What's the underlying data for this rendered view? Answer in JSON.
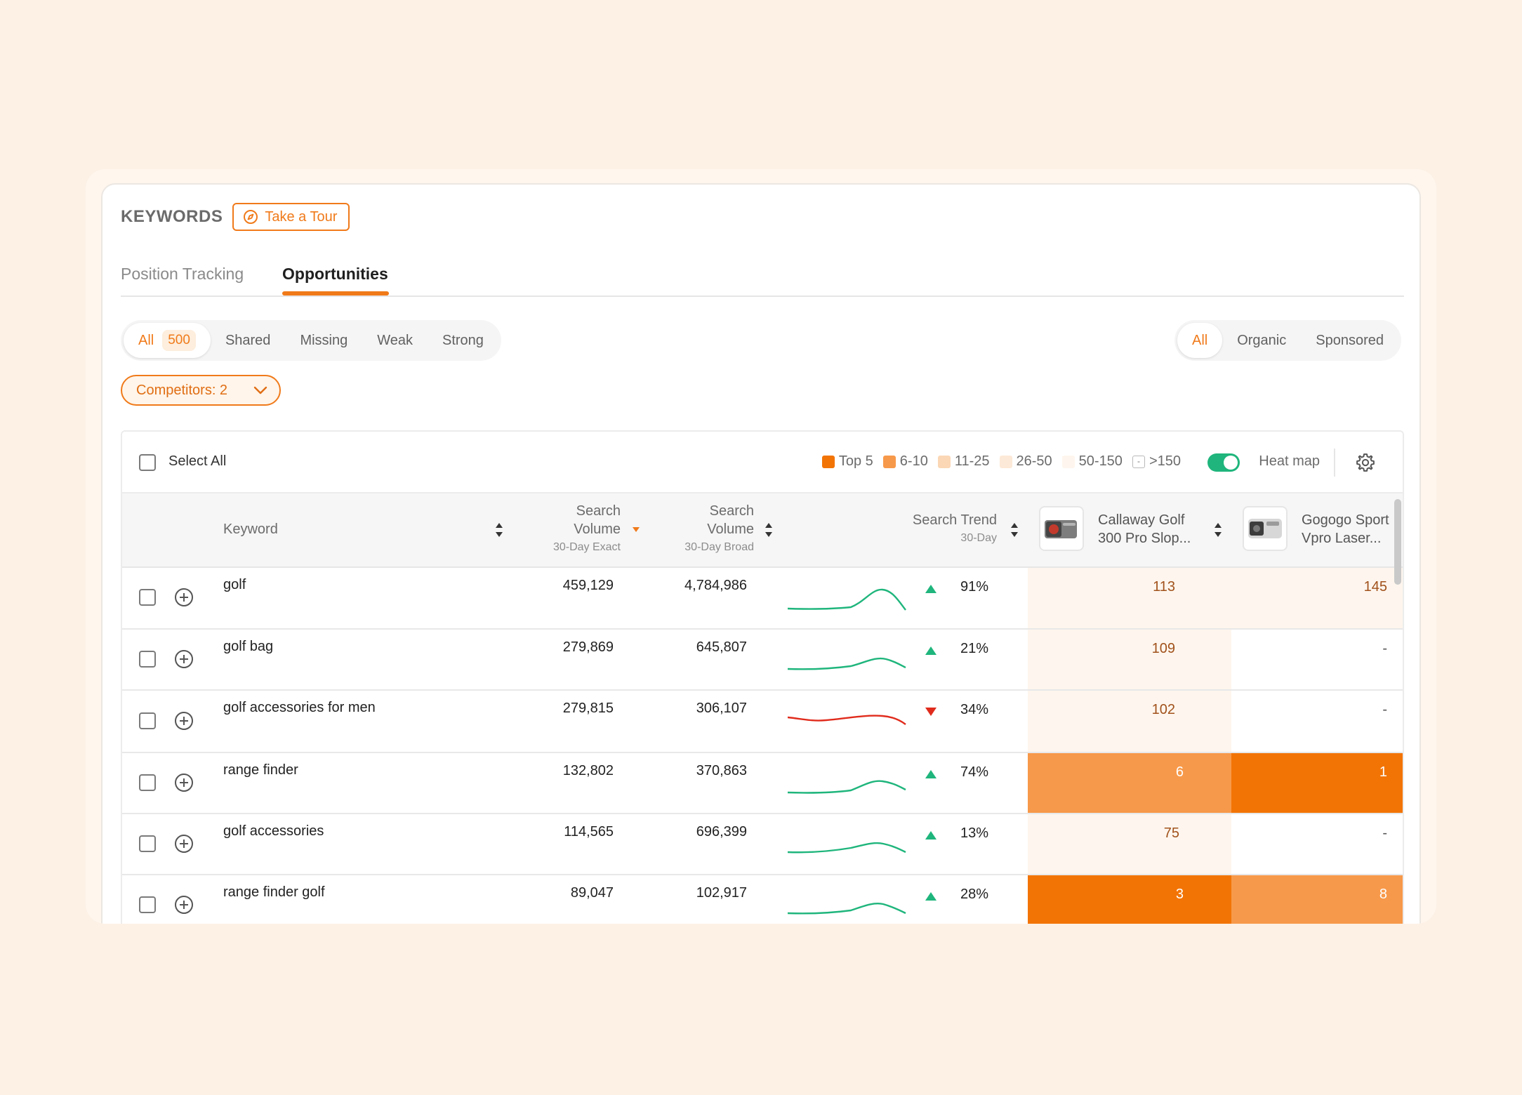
{
  "header": {
    "title": "KEYWORDS",
    "tour_label": "Take a Tour"
  },
  "tabs": [
    {
      "label": "Position Tracking"
    },
    {
      "label": "Opportunities"
    }
  ],
  "filters": {
    "all_label": "All",
    "all_count": "500",
    "items": [
      "Shared",
      "Missing",
      "Weak",
      "Strong"
    ]
  },
  "type_filter": {
    "items": [
      "All",
      "Organic",
      "Sponsored"
    ]
  },
  "competitors_label": "Competitors: 2",
  "toolbar": {
    "select_all": "Select All",
    "legend": [
      {
        "label": "Top 5",
        "color": "#f27405"
      },
      {
        "label": "6-10",
        "color": "#f7994a"
      },
      {
        "label": "11-25",
        "color": "#fbd7b5"
      },
      {
        "label": "26-50",
        "color": "#fde9d7"
      },
      {
        "label": "50-150",
        "color": "#fef6ee"
      },
      {
        "label": ">150",
        "color": "#ffffff",
        "mark": "-"
      }
    ],
    "heatmap_label": "Heat map"
  },
  "columns": {
    "keyword": "Keyword",
    "sv_exact": {
      "line1": "Search",
      "line2": "Volume",
      "sub": "30-Day Exact"
    },
    "sv_broad": {
      "line1": "Search",
      "line2": "Volume",
      "sub": "30-Day Broad"
    },
    "trend": {
      "label": "Search Trend",
      "sub": "30-Day"
    },
    "product1": {
      "line1": "Callaway Golf",
      "line2": "300 Pro Slop..."
    },
    "product2": {
      "line1": "Gogogo Sport",
      "line2": "Vpro Laser..."
    }
  },
  "rows": [
    {
      "keyword": "golf",
      "exact": "459,129",
      "broad": "4,784,986",
      "dir": "up",
      "pct": "91%",
      "p1": "113",
      "p2": "145"
    },
    {
      "keyword": "golf bag",
      "exact": "279,869",
      "broad": "645,807",
      "dir": "up",
      "pct": "21%",
      "p1": "109",
      "p2": "-"
    },
    {
      "keyword": "golf accessories for men",
      "exact": "279,815",
      "broad": "306,107",
      "dir": "down",
      "pct": "34%",
      "p1": "102",
      "p2": "-"
    },
    {
      "keyword": "range finder",
      "exact": "132,802",
      "broad": "370,863",
      "dir": "up",
      "pct": "74%",
      "p1": "6",
      "p2": "1"
    },
    {
      "keyword": "golf accessories",
      "exact": "114,565",
      "broad": "696,399",
      "dir": "up",
      "pct": "13%",
      "p1": "75",
      "p2": "-"
    },
    {
      "keyword": "range finder golf",
      "exact": "89,047",
      "broad": "102,917",
      "dir": "up",
      "pct": "28%",
      "p1": "3",
      "p2": "8"
    }
  ],
  "colors": {
    "accent": "#f07a1a",
    "up": "#1fb57c",
    "down": "#e02b1c"
  }
}
